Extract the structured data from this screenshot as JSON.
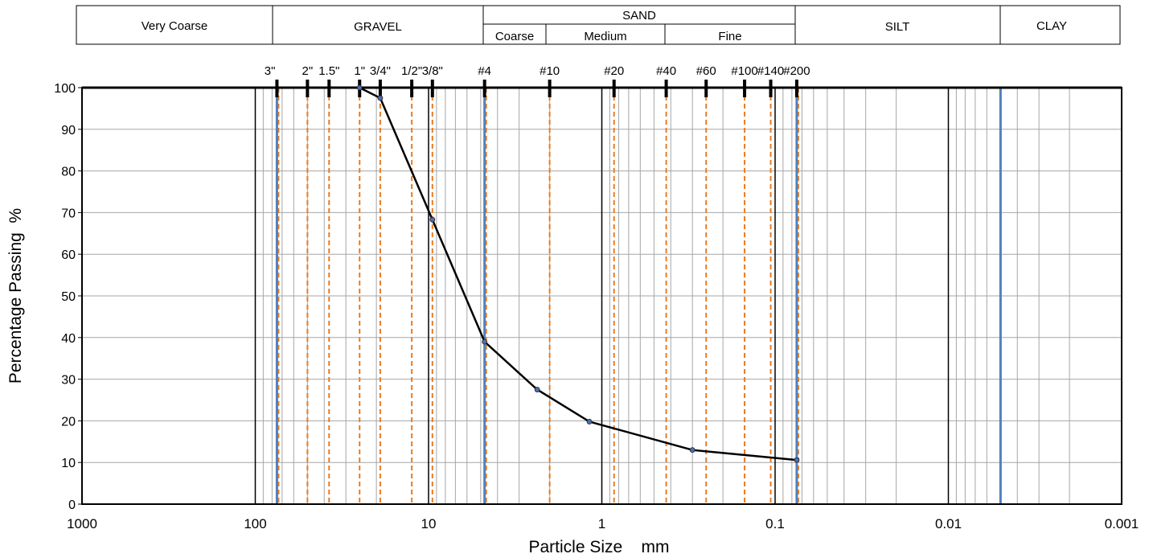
{
  "chart_data": {
    "type": "line",
    "xlabel": "Particle Size    mm",
    "ylabel": "Percentage Passing  %",
    "x_scale": "log-reversed",
    "xlim": [
      1000,
      0.001
    ],
    "ylim": [
      0,
      100
    ],
    "x_ticks": [
      {
        "value": 1000,
        "label": "1000"
      },
      {
        "value": 100,
        "label": "100"
      },
      {
        "value": 10,
        "label": "10"
      },
      {
        "value": 1,
        "label": "1"
      },
      {
        "value": 0.1,
        "label": "0.1"
      },
      {
        "value": 0.01,
        "label": "0.01"
      },
      {
        "value": 0.001,
        "label": "0.001"
      }
    ],
    "y_ticks": [
      0,
      10,
      20,
      30,
      40,
      50,
      60,
      70,
      80,
      90,
      100
    ],
    "grid": true,
    "series": [
      {
        "color": "#000000",
        "x": [
          25,
          19,
          9.5,
          4.75,
          2.36,
          1.18,
          0.3,
          0.075
        ],
        "y": [
          100,
          97.5,
          68.3,
          39,
          27.5,
          19.8,
          13,
          10.6
        ]
      }
    ],
    "sieves": [
      {
        "label": "3\"",
        "size": 75
      },
      {
        "label": "2\"",
        "size": 50
      },
      {
        "label": "1.5\"",
        "size": 37.5
      },
      {
        "label": "1\"",
        "size": 25
      },
      {
        "label": "3/4\"",
        "size": 19
      },
      {
        "label": "1/2\"",
        "size": 12.5
      },
      {
        "label": "3/8\"",
        "size": 9.5
      },
      {
        "label": "#4",
        "size": 4.75
      },
      {
        "label": "#10",
        "size": 2
      },
      {
        "label": "#20",
        "size": 0.85
      },
      {
        "label": "#40",
        "size": 0.425
      },
      {
        "label": "#60",
        "size": 0.25
      },
      {
        "label": "#100",
        "size": 0.15
      },
      {
        "label": "#140",
        "size": 0.106
      },
      {
        "label": "#200",
        "size": 0.075
      }
    ],
    "blue_boundaries": [
      75,
      4.75,
      0.075,
      0.005
    ],
    "colors": {
      "curve": "#000000",
      "sieve_line": "#E97C23",
      "boundary_line": "#4F81BD",
      "grid": "#A6A6A6",
      "marker": "#4F6FA5"
    }
  },
  "classification": {
    "very_coarse": "Very Coarse",
    "gravel": "GRAVEL",
    "sand": "SAND",
    "sand_coarse": "Coarse",
    "sand_medium": "Medium",
    "sand_fine": "Fine",
    "silt": "SILT",
    "clay": "CLAY"
  }
}
